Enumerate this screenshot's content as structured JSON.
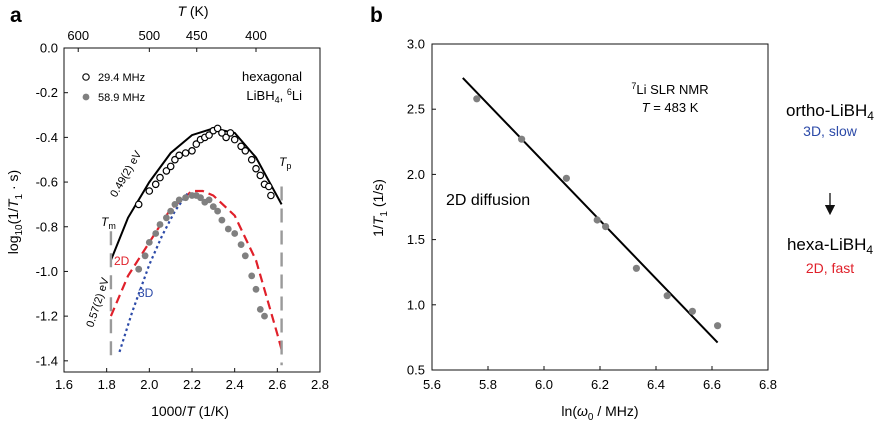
{
  "panel_labels": {
    "a": "a",
    "b": "b"
  },
  "chart_data": [
    {
      "type": "scatter",
      "panel": "a",
      "xlabel": "1000/T (1/K)",
      "ylabel": "log10(1/T1 · s)",
      "top_axis_label": "T (K)",
      "xlim": [
        1.6,
        2.8
      ],
      "ylim": [
        -1.45,
        0.0
      ],
      "xticks": [
        "1.6",
        "1.8",
        "2.0",
        "2.2",
        "2.4",
        "2.6",
        "2.8"
      ],
      "yticks": [
        "0.0",
        "-0.2",
        "-0.4",
        "-0.6",
        "-0.8",
        "-1.0",
        "-1.2",
        "-1.4"
      ],
      "top_ticks": [
        {
          "label": "600",
          "T": 600
        },
        {
          "label": "500",
          "T": 500
        },
        {
          "label": "450",
          "T": 450
        },
        {
          "label": "400",
          "T": 400
        }
      ],
      "legend_position": "top-left",
      "annotation_main": "hexagonal",
      "annotation_sub": "LiBH4, 6Li",
      "grid": false,
      "series": [
        {
          "name": "29.4 MHz",
          "marker": "open-circle",
          "color": "#000000",
          "x": [
            1.95,
            2.0,
            2.03,
            2.05,
            2.08,
            2.1,
            2.12,
            2.14,
            2.17,
            2.2,
            2.22,
            2.24,
            2.26,
            2.28,
            2.3,
            2.32,
            2.34,
            2.36,
            2.38,
            2.4,
            2.43,
            2.45,
            2.48,
            2.5,
            2.52,
            2.54,
            2.56,
            2.57
          ],
          "y": [
            -0.7,
            -0.64,
            -0.61,
            -0.58,
            -0.55,
            -0.53,
            -0.5,
            -0.48,
            -0.47,
            -0.46,
            -0.43,
            -0.41,
            -0.4,
            -0.39,
            -0.37,
            -0.36,
            -0.38,
            -0.4,
            -0.38,
            -0.41,
            -0.44,
            -0.46,
            -0.5,
            -0.54,
            -0.57,
            -0.61,
            -0.62,
            -0.66
          ]
        },
        {
          "name": "58.9 MHz",
          "marker": "filled-circle",
          "color": "#808080",
          "x": [
            1.95,
            1.98,
            2.0,
            2.03,
            2.05,
            2.08,
            2.1,
            2.12,
            2.14,
            2.17,
            2.2,
            2.22,
            2.24,
            2.26,
            2.28,
            2.3,
            2.32,
            2.34,
            2.37,
            2.4,
            2.43,
            2.45,
            2.48,
            2.5,
            2.52,
            2.54
          ],
          "y": [
            -0.99,
            -0.93,
            -0.87,
            -0.83,
            -0.79,
            -0.76,
            -0.73,
            -0.7,
            -0.68,
            -0.67,
            -0.66,
            -0.66,
            -0.67,
            -0.69,
            -0.68,
            -0.71,
            -0.73,
            -0.77,
            -0.81,
            -0.83,
            -0.88,
            -0.93,
            -1.02,
            -1.08,
            -1.17,
            -1.2
          ]
        }
      ],
      "fit_curves": [
        {
          "name": "fit 29.4 MHz",
          "style": "solid",
          "color": "#000000",
          "label": "0.49(2) eV",
          "x": [
            1.82,
            1.9,
            2.0,
            2.1,
            2.2,
            2.3,
            2.4,
            2.5,
            2.58,
            2.62
          ],
          "y": [
            -0.95,
            -0.76,
            -0.6,
            -0.47,
            -0.39,
            -0.36,
            -0.38,
            -0.49,
            -0.63,
            -0.7
          ]
        },
        {
          "name": "2D",
          "style": "dashed",
          "color": "#e0202a",
          "label": "2D",
          "x": [
            1.82,
            1.9,
            2.0,
            2.1,
            2.2,
            2.25,
            2.3,
            2.4,
            2.5,
            2.6,
            2.62
          ],
          "y": [
            -1.2,
            -1.02,
            -0.87,
            -0.72,
            -0.64,
            -0.64,
            -0.66,
            -0.75,
            -0.95,
            -1.28,
            -1.35
          ]
        },
        {
          "name": "3D",
          "style": "dotted",
          "color": "#2c4aa8",
          "label": "3D",
          "x": [
            1.86,
            1.92,
            2.0,
            2.06,
            2.12,
            2.18
          ],
          "y": [
            -1.36,
            -1.18,
            -0.97,
            -0.84,
            -0.73,
            -0.65
          ]
        }
      ],
      "line_label_lower": "0.57(2) eV",
      "markers": [
        {
          "label": "Tm",
          "x": 1.82,
          "y_from": -0.82,
          "y_to": -1.38,
          "label_y": -0.79
        },
        {
          "label": "Tp",
          "x": 2.62,
          "y_from": -0.62,
          "y_to": -1.42,
          "label_y": -0.57
        }
      ]
    },
    {
      "type": "scatter",
      "panel": "b",
      "xlabel": "ln(ω0 / MHz)",
      "ylabel": "1/T1 (1/s)",
      "xlim": [
        5.6,
        6.8
      ],
      "ylim": [
        0.5,
        3.0
      ],
      "xticks": [
        "5.6",
        "5.8",
        "6.0",
        "6.2",
        "6.4",
        "6.6",
        "6.8"
      ],
      "yticks": [
        "0.5",
        "1.0",
        "1.5",
        "2.0",
        "2.5",
        "3.0"
      ],
      "annotation_line1": "7Li SLR NMR",
      "annotation_line2": "T = 483 K",
      "annotation_diffusion": "2D diffusion",
      "grid": false,
      "series": [
        {
          "name": "data",
          "marker": "filled-circle",
          "color": "#808080",
          "x": [
            5.76,
            5.92,
            6.08,
            6.19,
            6.22,
            6.33,
            6.44,
            6.53,
            6.62
          ],
          "y": [
            2.58,
            2.27,
            1.97,
            1.65,
            1.6,
            1.28,
            1.07,
            0.95,
            0.84
          ]
        }
      ],
      "fit_line": {
        "x": [
          5.71,
          6.62
        ],
        "y": [
          2.74,
          0.71
        ],
        "color": "#000000"
      }
    }
  ],
  "scheme": {
    "top_label": "ortho-LiBH4",
    "top_sublabel": "3D, slow",
    "top_sublabel_color": "#2c4aa8",
    "bottom_label": "hexa-LiBH4",
    "bottom_sublabel": "2D, fast",
    "bottom_sublabel_color": "#e0202a",
    "arrow": "down-arrow"
  }
}
